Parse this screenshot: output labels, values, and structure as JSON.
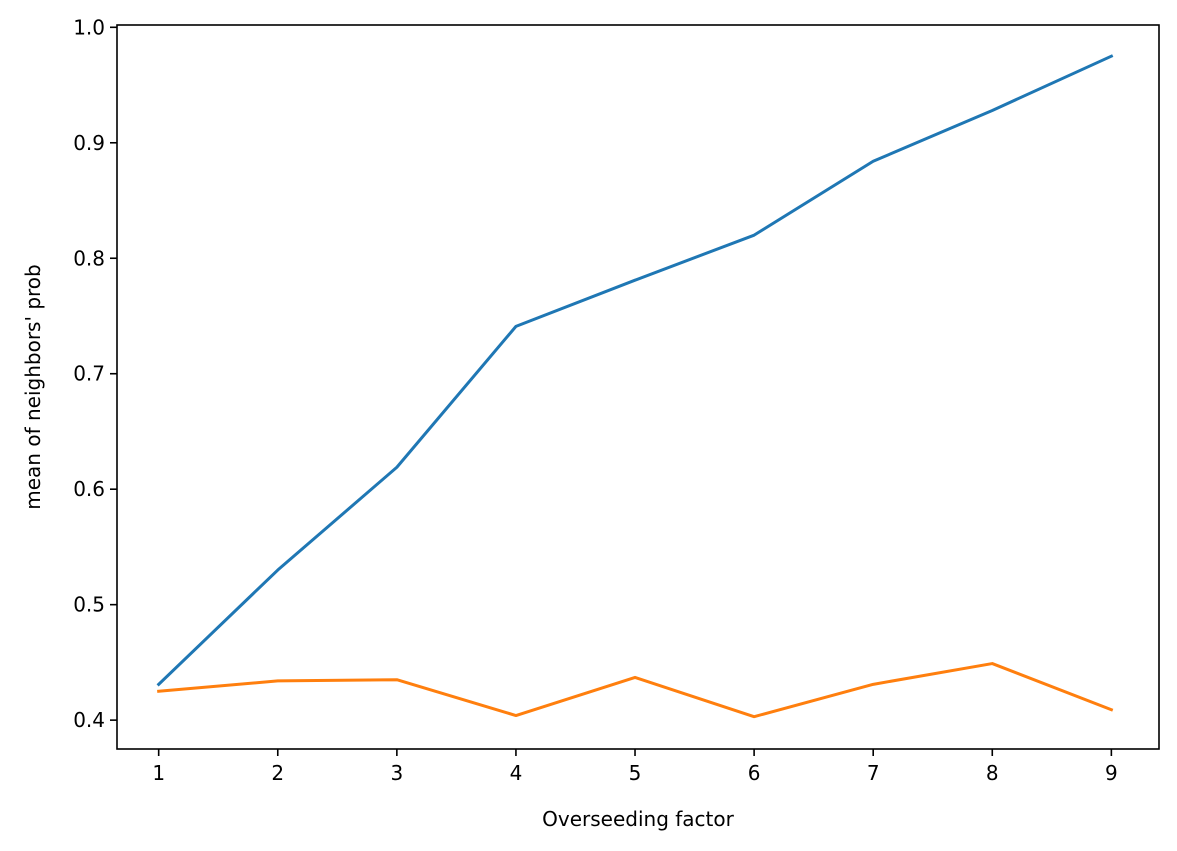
{
  "chart_data": {
    "type": "line",
    "title": "",
    "xlabel": "Overseeding factor",
    "ylabel": "mean of neighbors' prob",
    "x": [
      1,
      2,
      3,
      4,
      5,
      6,
      7,
      8,
      9
    ],
    "xlim": [
      0.65,
      9.4
    ],
    "ylim": [
      0.375,
      1.002
    ],
    "xticks": [
      1,
      2,
      3,
      4,
      5,
      6,
      7,
      8,
      9
    ],
    "yticks": [
      0.4,
      0.5,
      0.6,
      0.7,
      0.8,
      0.9,
      1.0
    ],
    "grid": false,
    "series": [
      {
        "color": "#1f77b4",
        "values": [
          0.431,
          0.53,
          0.619,
          0.741,
          0.781,
          0.82,
          0.884,
          0.928,
          0.975
        ]
      },
      {
        "color": "#ff7f0e",
        "values": [
          0.425,
          0.434,
          0.435,
          0.404,
          0.437,
          0.403,
          0.431,
          0.449,
          0.409
        ]
      }
    ]
  }
}
